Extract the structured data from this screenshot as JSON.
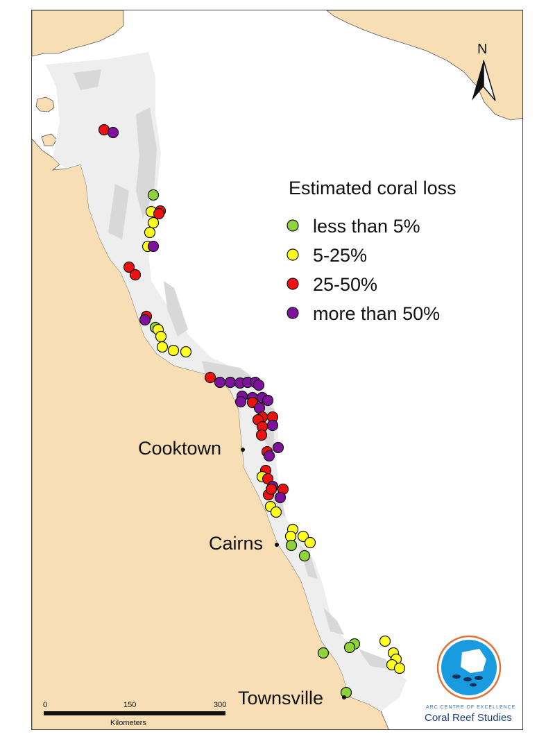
{
  "legend": {
    "title": "Estimated coral loss",
    "items": [
      {
        "label": "less than 5%",
        "color": "#8fd23a"
      },
      {
        "label": "5-25%",
        "color": "#ffff1e"
      },
      {
        "label": "25-50%",
        "color": "#ee1111"
      },
      {
        "label": "more than 50%",
        "color": "#7f129d"
      }
    ]
  },
  "towns": [
    {
      "name": "Cooktown"
    },
    {
      "name": "Cairns"
    },
    {
      "name": "Townsville"
    }
  ],
  "north_arrow": {
    "label": "N"
  },
  "scale_bar": {
    "ticks": [
      "0",
      "150",
      "300"
    ],
    "unit": "Kilometers"
  },
  "logo": {
    "line1": "ARC CENTRE OF EXCELLENCE",
    "line2": "Coral Reef Studies"
  },
  "colors": {
    "land": "#f7deb4",
    "sea": "#ffffff",
    "shelf": "#eeeeee",
    "reef": "#d6d6d6",
    "outline": "#555555"
  }
}
